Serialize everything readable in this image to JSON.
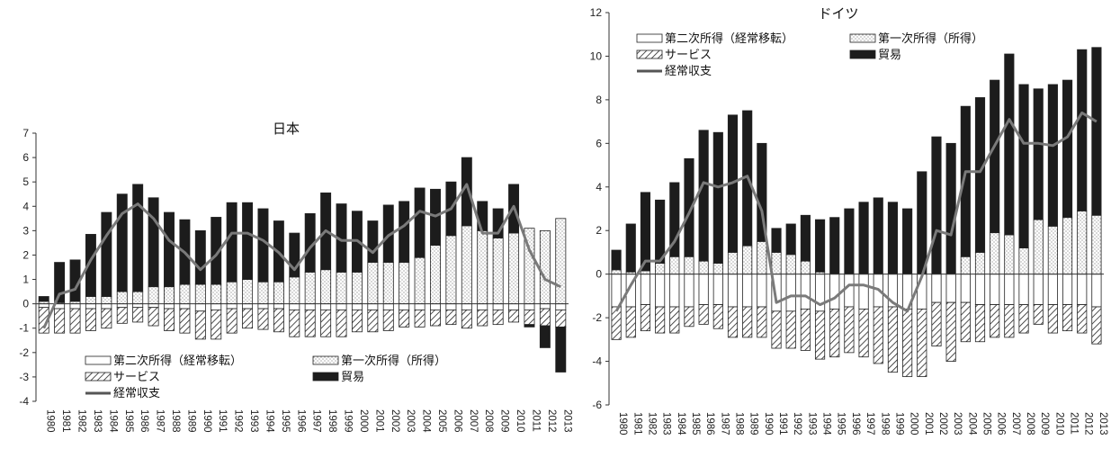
{
  "chart_data": [
    {
      "type": "bar",
      "stacked": true,
      "title": "日本",
      "xlabel": "",
      "ylabel": "",
      "ylim": [
        -4,
        7
      ],
      "yticks": [
        7,
        6,
        5,
        4,
        3,
        2,
        1,
        0,
        -1,
        -2,
        -3,
        -4
      ],
      "grid": false,
      "legend_position": "bottom-left",
      "categories": [
        "1980",
        "1981",
        "1982",
        "1983",
        "1984",
        "1985",
        "1986",
        "1987",
        "1988",
        "1989",
        "1990",
        "1991",
        "1992",
        "1993",
        "1994",
        "1995",
        "1996",
        "1997",
        "1998",
        "1999",
        "2000",
        "2001",
        "2002",
        "2003",
        "2004",
        "2005",
        "2006",
        "2007",
        "2008",
        "2009",
        "2010",
        "2011",
        "2012",
        "2013"
      ],
      "series": [
        {
          "name": "第二次所得（経常移転）",
          "kind": "bar",
          "pattern": "blank",
          "values": [
            -0.15,
            -0.2,
            -0.2,
            -0.2,
            -0.2,
            -0.15,
            -0.15,
            -0.15,
            -0.2,
            -0.2,
            -0.3,
            -0.25,
            -0.2,
            -0.2,
            -0.2,
            -0.2,
            -0.25,
            -0.25,
            -0.25,
            -0.25,
            -0.25,
            -0.25,
            -0.25,
            -0.25,
            -0.25,
            -0.25,
            -0.25,
            -0.25,
            -0.25,
            -0.25,
            -0.25,
            -0.25,
            -0.2,
            -0.25
          ]
        },
        {
          "name": "第一次所得（所得）",
          "kind": "bar",
          "pattern": "dots",
          "values": [
            0.1,
            0.05,
            0.1,
            0.3,
            0.3,
            0.5,
            0.5,
            0.7,
            0.7,
            0.8,
            0.8,
            0.8,
            0.9,
            1.0,
            0.9,
            0.9,
            1.1,
            1.3,
            1.4,
            1.3,
            1.3,
            1.7,
            1.7,
            1.7,
            1.9,
            2.4,
            2.8,
            3.2,
            3.0,
            2.7,
            2.9,
            3.1,
            3.0,
            3.5
          ]
        },
        {
          "name": "サービス",
          "kind": "bar",
          "pattern": "hatch",
          "values": [
            -1.05,
            -1.0,
            -1.0,
            -0.9,
            -0.8,
            -0.65,
            -0.6,
            -0.75,
            -0.9,
            -1.0,
            -1.15,
            -1.2,
            -1.0,
            -0.8,
            -0.85,
            -0.95,
            -1.1,
            -1.1,
            -1.1,
            -1.1,
            -0.9,
            -0.9,
            -0.85,
            -0.7,
            -0.7,
            -0.65,
            -0.6,
            -0.75,
            -0.65,
            -0.6,
            -0.5,
            -0.6,
            -0.7,
            -0.7
          ]
        },
        {
          "name": "貿易",
          "kind": "bar",
          "pattern": "solid",
          "values": [
            0.2,
            1.65,
            1.7,
            2.55,
            3.45,
            4.0,
            4.4,
            3.65,
            3.05,
            2.65,
            2.2,
            2.75,
            3.25,
            3.15,
            3.0,
            2.5,
            1.8,
            2.4,
            3.15,
            2.8,
            2.5,
            1.7,
            2.35,
            2.5,
            2.85,
            2.3,
            2.2,
            2.8,
            1.2,
            1.2,
            2.0,
            -0.1,
            -0.9,
            -1.85
          ]
        },
        {
          "name": "経常収支",
          "kind": "line",
          "values": [
            -1.0,
            0.4,
            0.6,
            1.8,
            2.8,
            3.7,
            4.1,
            3.5,
            2.6,
            2.1,
            1.4,
            2.0,
            2.9,
            2.9,
            2.6,
            2.1,
            1.4,
            2.3,
            3.0,
            2.6,
            2.6,
            2.1,
            2.8,
            3.2,
            3.8,
            3.6,
            3.9,
            4.9,
            2.9,
            2.9,
            4.0,
            2.2,
            1.0,
            0.7
          ]
        }
      ]
    },
    {
      "type": "bar",
      "stacked": true,
      "title": "ドイツ",
      "xlabel": "",
      "ylabel": "",
      "ylim": [
        -6,
        12
      ],
      "yticks": [
        12,
        10,
        8,
        6,
        4,
        2,
        0,
        -2,
        -4,
        -6
      ],
      "grid": false,
      "legend_position": "top-left",
      "categories": [
        "1980",
        "1981",
        "1982",
        "1983",
        "1984",
        "1985",
        "1986",
        "1987",
        "1988",
        "1989",
        "1990",
        "1991",
        "1992",
        "1993",
        "1994",
        "1995",
        "1996",
        "1997",
        "1998",
        "1999",
        "2000",
        "2001",
        "2002",
        "2003",
        "2004",
        "2005",
        "2006",
        "2007",
        "2008",
        "2009",
        "2010",
        "2011",
        "2012",
        "2013"
      ],
      "series": [
        {
          "name": "第二次所得（経常移転）",
          "kind": "bar",
          "pattern": "blank",
          "values": [
            -1.5,
            -1.5,
            -1.4,
            -1.5,
            -1.5,
            -1.5,
            -1.4,
            -1.4,
            -1.5,
            -1.5,
            -1.5,
            -1.7,
            -1.7,
            -1.6,
            -1.7,
            -1.6,
            -1.5,
            -1.6,
            -1.5,
            -1.5,
            -1.6,
            -1.6,
            -1.3,
            -1.3,
            -1.3,
            -1.4,
            -1.4,
            -1.4,
            -1.4,
            -1.4,
            -1.4,
            -1.4,
            -1.4,
            -1.5
          ]
        },
        {
          "name": "第一次所得（所得）",
          "kind": "bar",
          "pattern": "dots",
          "values": [
            0.2,
            0.1,
            0.15,
            0.5,
            0.8,
            0.8,
            0.6,
            0.5,
            1.0,
            1.3,
            1.5,
            1.0,
            0.9,
            0.6,
            0.1,
            0,
            0,
            0,
            0,
            0,
            0,
            0,
            0,
            0,
            0.8,
            1.0,
            1.9,
            1.8,
            1.2,
            2.5,
            2.2,
            2.6,
            2.9,
            2.7
          ]
        },
        {
          "name": "サービス",
          "kind": "bar",
          "pattern": "hatch",
          "values": [
            -1.5,
            -1.4,
            -1.2,
            -1.2,
            -1.2,
            -0.9,
            -0.9,
            -1.1,
            -1.4,
            -1.4,
            -1.4,
            -1.7,
            -1.7,
            -1.9,
            -2.2,
            -2.2,
            -2.1,
            -2.2,
            -2.6,
            -3.0,
            -3.1,
            -3.1,
            -2.0,
            -2.7,
            -1.8,
            -1.7,
            -1.5,
            -1.5,
            -1.3,
            -0.9,
            -1.3,
            -1.2,
            -1.3,
            -1.7
          ]
        },
        {
          "name": "貿易",
          "kind": "bar",
          "pattern": "solid",
          "values": [
            0.9,
            2.2,
            3.6,
            2.9,
            3.4,
            4.5,
            6.0,
            6.0,
            6.3,
            6.2,
            4.5,
            1.1,
            1.4,
            2.1,
            2.4,
            2.6,
            3.0,
            3.3,
            3.5,
            3.3,
            3.0,
            4.7,
            6.3,
            6.0,
            6.9,
            7.1,
            7.0,
            8.3,
            7.5,
            6.0,
            6.5,
            6.3,
            7.4,
            7.7
          ]
        },
        {
          "name": "経常収支",
          "kind": "line",
          "values": [
            -1.7,
            -0.5,
            0.6,
            0.6,
            1.5,
            2.8,
            4.2,
            4.0,
            4.2,
            4.5,
            2.9,
            -1.3,
            -1.0,
            -1.0,
            -1.4,
            -1.1,
            -0.5,
            -0.5,
            -0.7,
            -1.3,
            -1.7,
            -0.1,
            2.0,
            1.8,
            4.7,
            4.7,
            5.9,
            7.1,
            6.0,
            6.0,
            5.9,
            6.3,
            7.4,
            7.0
          ]
        }
      ]
    }
  ]
}
